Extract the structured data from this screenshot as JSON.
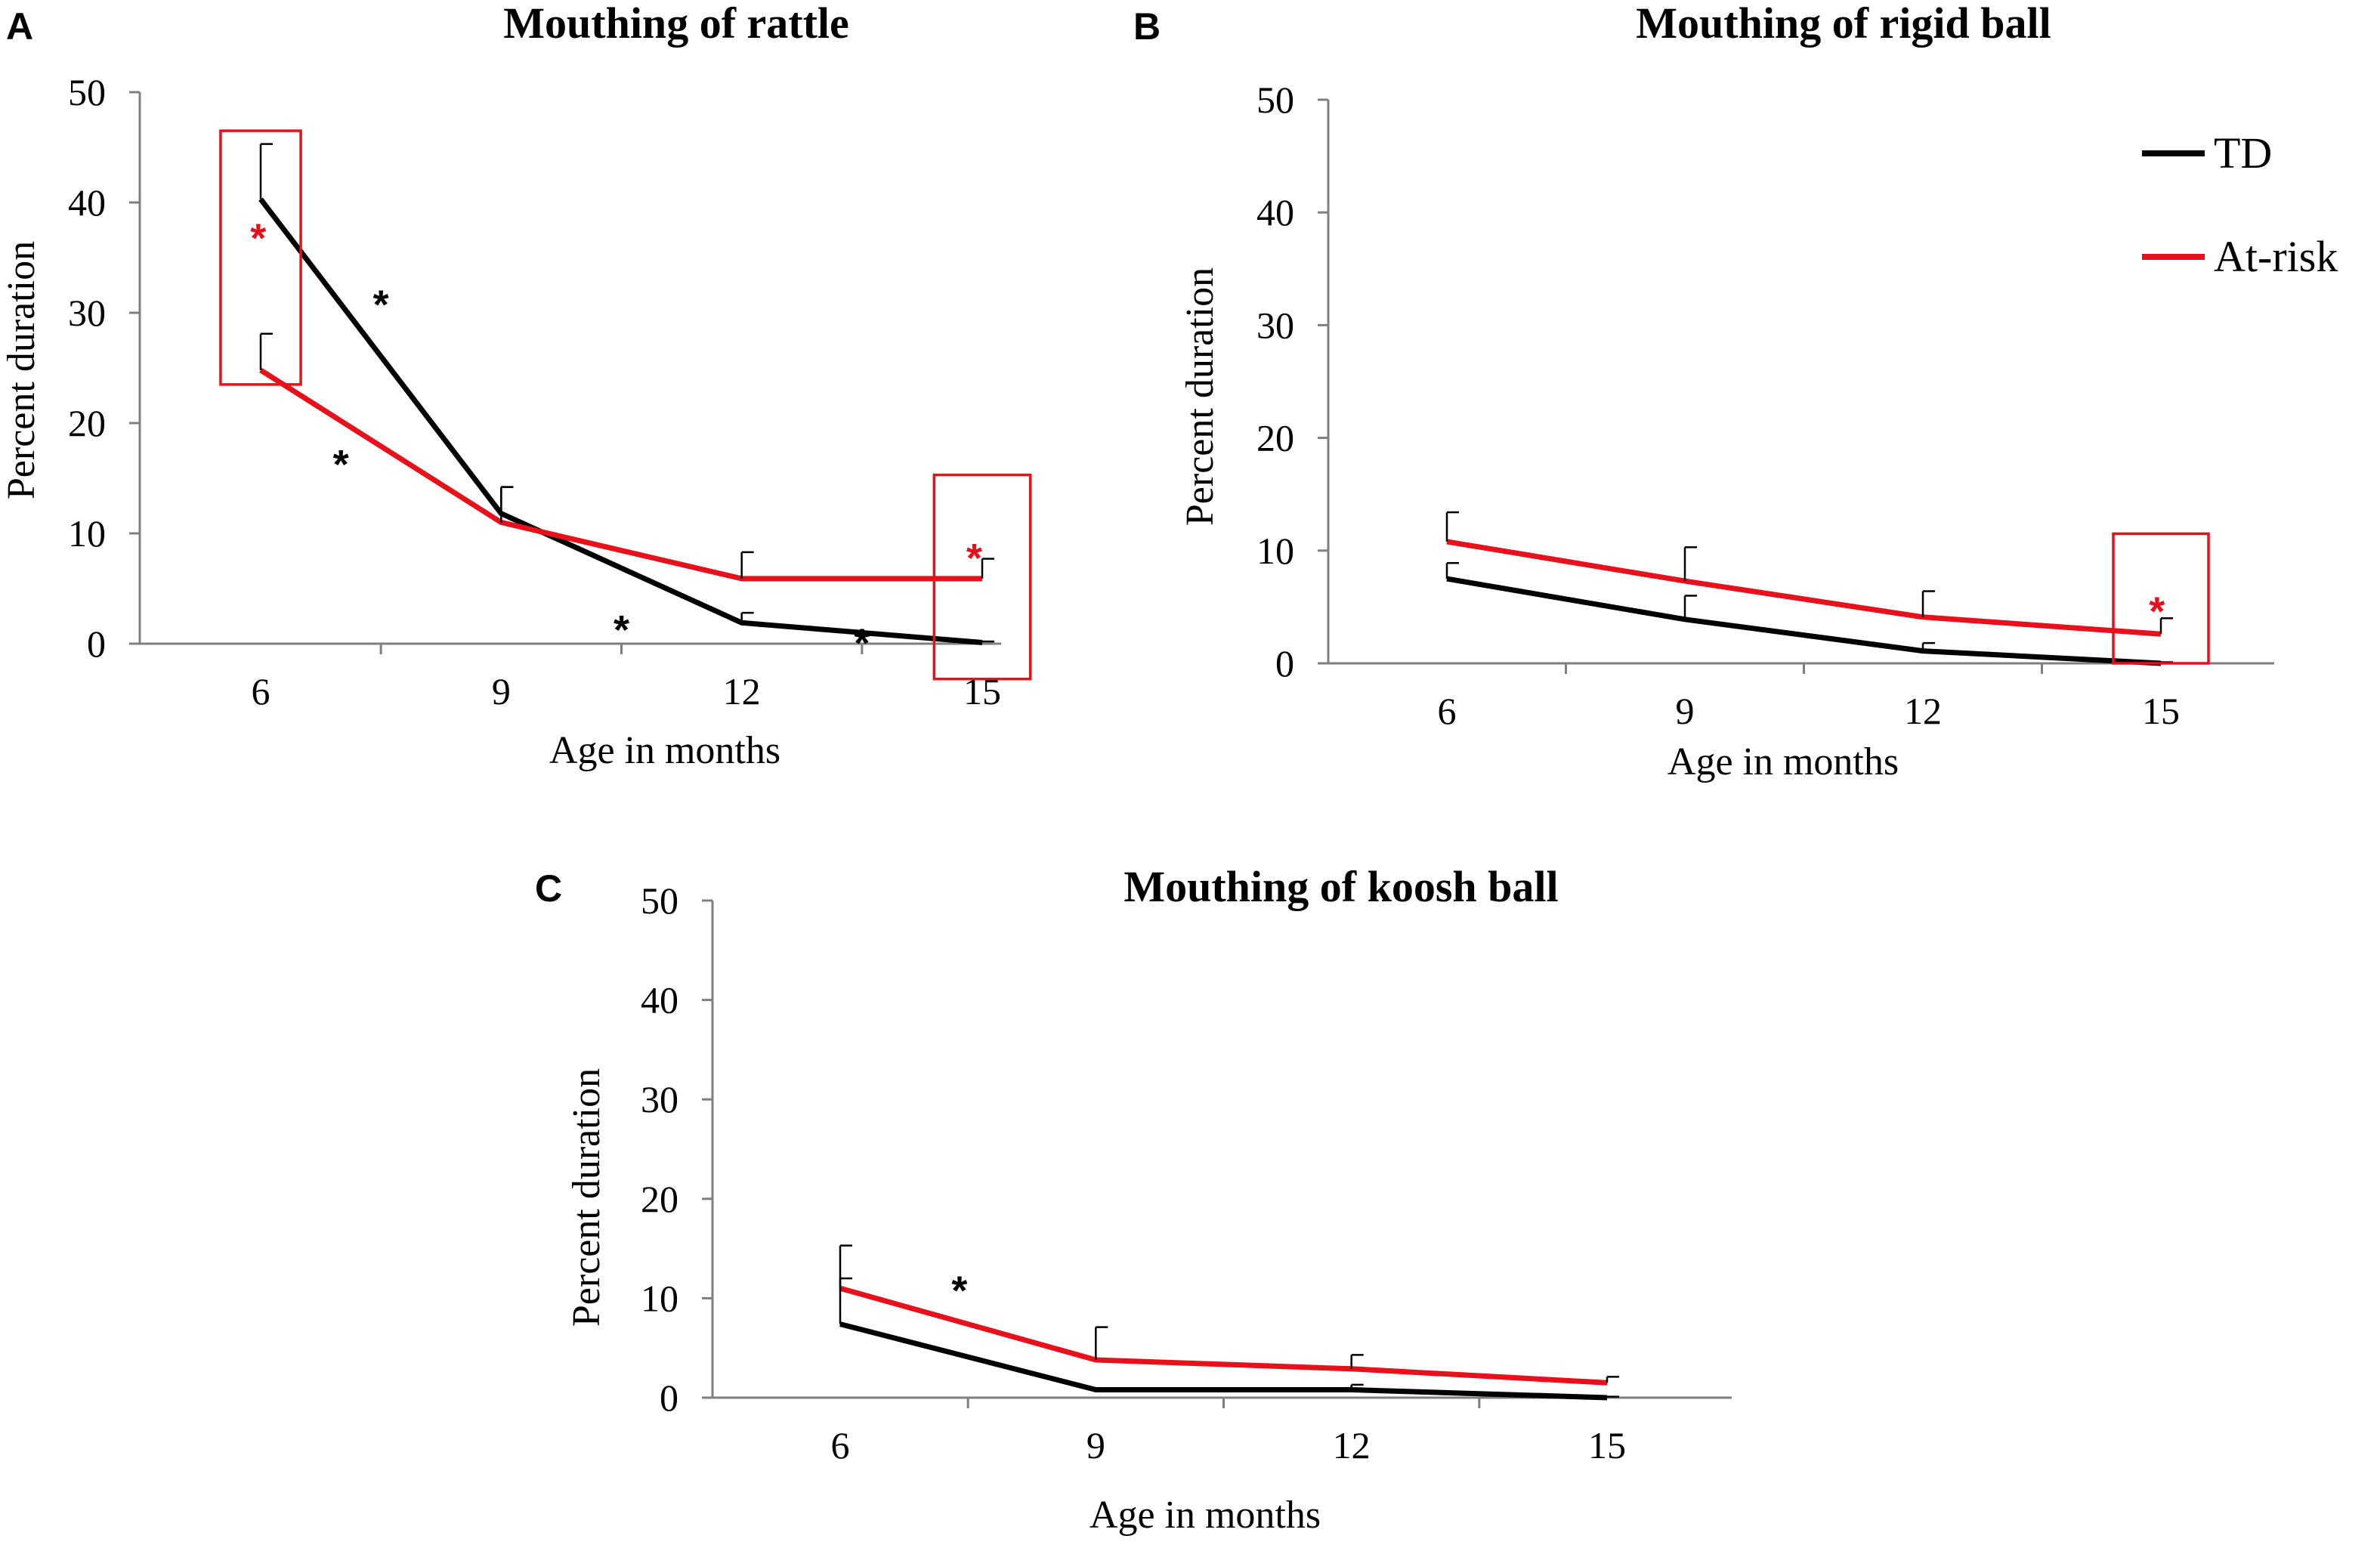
{
  "legend": {
    "entries": [
      {
        "name": "TD",
        "color": "#000000"
      },
      {
        "name": "At-risk",
        "color": "#e8101a"
      }
    ]
  },
  "chart_data": [
    {
      "panel": "A",
      "type": "line",
      "title": "Mouthing of rattle",
      "xlabel": "Age in months",
      "ylabel": "Percent duration",
      "x": [
        6,
        9,
        12,
        15
      ],
      "xticks": [
        "6",
        "9",
        "12",
        "15"
      ],
      "ylim": [
        0,
        50
      ],
      "yticks": [
        "0",
        "10",
        "20",
        "30",
        "40",
        "50"
      ],
      "series": [
        {
          "name": "TD",
          "color": "#000000",
          "values": [
            40.3,
            11.8,
            1.9,
            0.1
          ],
          "errors": [
            5.0,
            2.4,
            0.9,
            0.1
          ]
        },
        {
          "name": "At-risk",
          "color": "#e8101a",
          "values": [
            24.8,
            11.0,
            5.9,
            5.9
          ],
          "errors": [
            3.3,
            3.2,
            2.4,
            1.8
          ]
        }
      ],
      "annotations": [
        {
          "label": "*",
          "color": "#000000",
          "x": 7.0,
          "y": 15.0
        },
        {
          "label": "*",
          "color": "#000000",
          "x": 7.5,
          "y": 29.5
        },
        {
          "label": "*",
          "color": "#000000",
          "x": 10.5,
          "y": 0.0
        },
        {
          "label": "*",
          "color": "#000000",
          "x": 13.5,
          "y": -1.2
        },
        {
          "label": "*",
          "color": "#e8101a",
          "x": 5.97,
          "y": 35.5
        },
        {
          "label": "*",
          "color": "#e8101a",
          "x": 14.9,
          "y": 6.5
        }
      ],
      "highlight_boxes": [
        {
          "x": [
            5.5,
            6.5
          ],
          "y": [
            23.5,
            46.5
          ]
        },
        {
          "x": [
            14.4,
            15.6
          ],
          "y": [
            -3.2,
            15.3
          ]
        }
      ]
    },
    {
      "panel": "B",
      "type": "line",
      "title": "Mouthing of rigid ball",
      "xlabel": "Age in months",
      "ylabel": "Percent duration",
      "x": [
        6,
        9,
        12,
        15
      ],
      "xticks": [
        "6",
        "9",
        "12",
        "15"
      ],
      "ylim": [
        0,
        50
      ],
      "yticks": [
        "0",
        "10",
        "20",
        "30",
        "40",
        "50"
      ],
      "series": [
        {
          "name": "TD",
          "color": "#000000",
          "values": [
            7.5,
            3.9,
            1.1,
            0.0
          ],
          "errors": [
            1.4,
            2.1,
            0.7,
            0.1
          ]
        },
        {
          "name": "At-risk",
          "color": "#e8101a",
          "values": [
            10.8,
            7.3,
            4.1,
            2.6
          ],
          "errors": [
            2.6,
            3.0,
            2.3,
            1.4
          ]
        }
      ],
      "annotations": [
        {
          "label": "*",
          "color": "#e8101a",
          "x": 14.95,
          "y": 3.4
        }
      ],
      "highlight_boxes": [
        {
          "x": [
            14.4,
            15.6
          ],
          "y": [
            0.0,
            11.5
          ]
        }
      ]
    },
    {
      "panel": "C",
      "type": "line",
      "title": "Mouthing of koosh ball",
      "xlabel": "Age in months",
      "ylabel": "Percent duration",
      "x": [
        6,
        9,
        12,
        15
      ],
      "xticks": [
        "6",
        "9",
        "12",
        "15"
      ],
      "ylim": [
        0,
        50
      ],
      "yticks": [
        "0",
        "10",
        "20",
        "30",
        "40",
        "50"
      ],
      "series": [
        {
          "name": "TD",
          "color": "#000000",
          "values": [
            7.4,
            0.8,
            0.8,
            0.0
          ],
          "errors": [
            4.6,
            0.0,
            0.5,
            0.1
          ]
        },
        {
          "name": "At-risk",
          "color": "#e8101a",
          "values": [
            11.0,
            3.8,
            2.9,
            1.5
          ],
          "errors": [
            4.3,
            3.3,
            1.4,
            0.6
          ]
        }
      ],
      "annotations": [
        {
          "label": "*",
          "color": "#000000",
          "x": 7.4,
          "y": 9.4
        }
      ],
      "highlight_boxes": []
    }
  ]
}
